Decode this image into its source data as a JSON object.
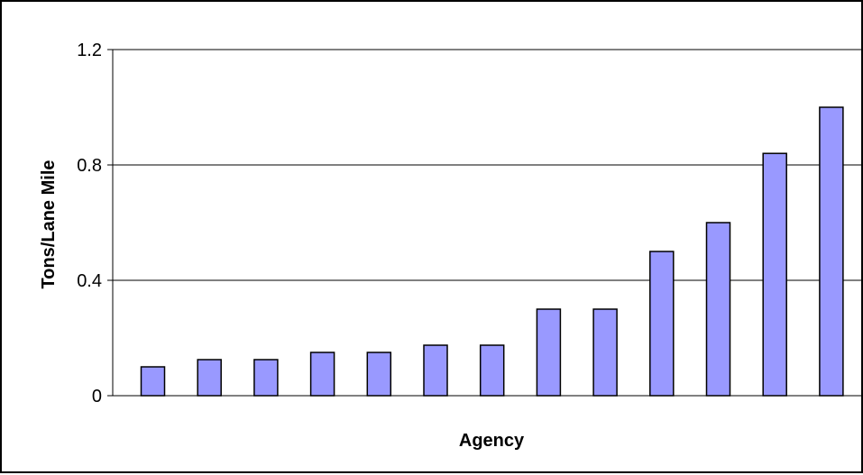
{
  "chart_data": {
    "type": "bar",
    "title": "",
    "xlabel": "Agency",
    "ylabel": "Tons/Lane Mile",
    "categories": [
      "",
      "",
      "",
      "",
      "",
      "",
      "",
      "",
      "",
      "",
      "",
      "",
      ""
    ],
    "values": [
      0.1,
      0.125,
      0.125,
      0.15,
      0.15,
      0.175,
      0.175,
      0.3,
      0.3,
      0.5,
      0.6,
      0.84,
      1.0
    ],
    "ylim": [
      0,
      1.2
    ],
    "yticks": [
      0,
      0.4,
      0.8,
      1.2
    ],
    "ytick_labels": [
      "0",
      "0.4",
      "0.8",
      "1.2"
    ],
    "grid": "horizontal",
    "legend": "none",
    "colors": {
      "bar_fill": "#9999ff",
      "bar_stroke": "#000000",
      "grid": "#000000",
      "background": "#ffffff"
    }
  }
}
